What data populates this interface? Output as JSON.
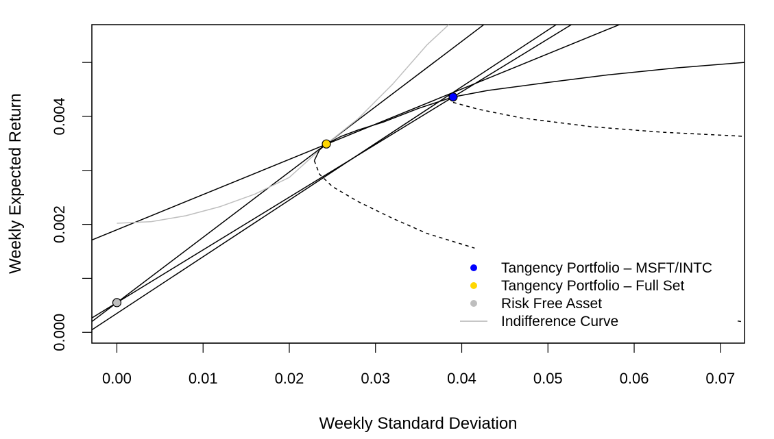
{
  "chart_data": {
    "type": "line",
    "title": "",
    "xlabel": "Weekly Standard Deviation",
    "ylabel": "Weekly Expected Return",
    "xlim": [
      -0.0029,
      0.0728
    ],
    "ylim": [
      -0.0002,
      0.0057
    ],
    "x_ticks": [
      0.0,
      0.01,
      0.02,
      0.03,
      0.04,
      0.05,
      0.06,
      0.07
    ],
    "x_tick_labels": [
      "0.00",
      "0.01",
      "0.02",
      "0.03",
      "0.04",
      "0.05",
      "0.06",
      "0.07"
    ],
    "y_ticks": [
      0.0,
      0.001,
      0.002,
      0.003,
      0.004,
      0.005
    ],
    "y_tick_labels": [
      "0.000",
      "",
      "0.002",
      "",
      "0.004",
      ""
    ],
    "grid": false,
    "legend_position": "bottom-right",
    "legend": [
      {
        "label": "Tangency Portfolio – MSFT/INTC",
        "marker": "point",
        "color": "#0000ff"
      },
      {
        "label": "Tangency Portfolio – Full Set",
        "marker": "point",
        "color": "#ffd700"
      },
      {
        "label": "Risk Free Asset",
        "marker": "point",
        "color": "#bebebe"
      },
      {
        "label": "Indifference Curve",
        "marker": "line",
        "color": "#bebebe"
      }
    ],
    "points": [
      {
        "name": "Tangency Portfolio – MSFT/INTC",
        "x": 0.039,
        "y": 0.00436,
        "color": "#0000ff"
      },
      {
        "name": "Tangency Portfolio – Full Set",
        "x": 0.0243,
        "y": 0.00349,
        "color": "#ffd700"
      },
      {
        "name": "Risk Free Asset",
        "x": 0.0,
        "y": 0.00055,
        "color": "#bebebe"
      }
    ],
    "lines": [
      {
        "kind": "cml-full-set",
        "style": "solid",
        "color": "#000000",
        "intercept": 0.00055,
        "slope": 0.121
      },
      {
        "kind": "cml-msft-intc",
        "style": "solid",
        "color": "#000000",
        "intercept": 0.00055,
        "slope": 0.0977
      },
      {
        "kind": "tangent-line",
        "style": "solid",
        "color": "#000000",
        "intercept": 0.00035,
        "slope": 0.105
      },
      {
        "kind": "tangent-line",
        "style": "solid",
        "color": "#000000",
        "intercept": 0.0019,
        "slope": 0.0652
      }
    ],
    "frontier_efficient_solid": {
      "style": "solid",
      "color": "#000000",
      "x": [
        0.0229,
        0.0235,
        0.0243,
        0.026,
        0.028,
        0.031,
        0.035,
        0.039,
        0.043,
        0.05,
        0.057,
        0.065,
        0.0728
      ],
      "y": [
        0.00318,
        0.00338,
        0.00349,
        0.00363,
        0.00375,
        0.0039,
        0.00415,
        0.00436,
        0.00448,
        0.00463,
        0.00477,
        0.0049,
        0.005
      ]
    },
    "frontier_lower_dashed": {
      "style": "dashed",
      "color": "#000000",
      "x": [
        0.0229,
        0.0235,
        0.025,
        0.028,
        0.032,
        0.036,
        0.0415
      ],
      "y": [
        0.00318,
        0.00293,
        0.0027,
        0.00242,
        0.00211,
        0.00183,
        0.00156
      ]
    },
    "frontier_lower_dashed_tail": {
      "style": "dashed",
      "color": "#000000",
      "x": [
        0.072,
        0.0728
      ],
      "y": [
        0.00021,
        0.00019
      ]
    },
    "frontier_upper_dashed": {
      "style": "dashed",
      "color": "#000000",
      "x": [
        0.039,
        0.042,
        0.047,
        0.055,
        0.063,
        0.0728
      ],
      "y": [
        0.00426,
        0.00413,
        0.00397,
        0.00381,
        0.00371,
        0.00363
      ]
    },
    "indifference_curve": {
      "style": "solid",
      "color": "#bebebe",
      "x": [
        0.0,
        0.004,
        0.008,
        0.012,
        0.016,
        0.02,
        0.0243,
        0.028,
        0.032,
        0.036,
        0.0385
      ],
      "y": [
        0.00202,
        0.00205,
        0.00216,
        0.00233,
        0.00256,
        0.00287,
        0.00349,
        0.00396,
        0.0046,
        0.00533,
        0.0057
      ]
    }
  }
}
